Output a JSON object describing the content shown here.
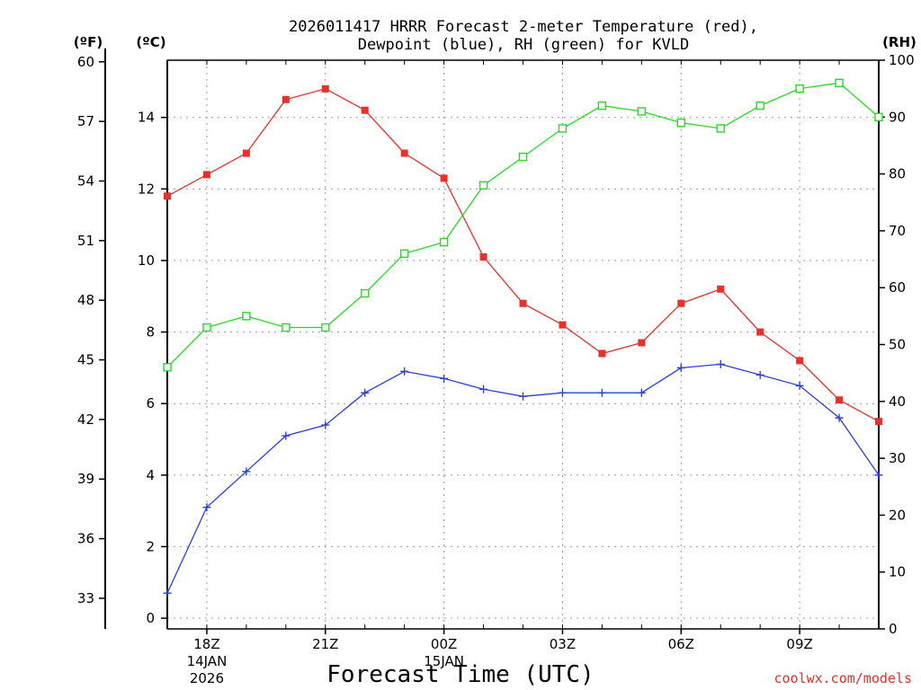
{
  "chart_data": {
    "type": "line",
    "title_line1": "2026011417 HRRR Forecast 2-meter Temperature (red),",
    "title_line2": "Dewpoint (blue), RH (green) for KVLD",
    "xlabel": "Forecast Time (UTC)",
    "credit": "coolwx.com/models",
    "left_outer_unit": "(ºF)",
    "left_inner_unit": "(ºC)",
    "right_unit": "(RH)",
    "x_range": [
      17,
      35
    ],
    "x_hours": [
      17,
      18,
      19,
      20,
      21,
      22,
      23,
      24,
      25,
      26,
      27,
      28,
      29,
      30,
      31,
      32,
      33,
      34,
      35
    ],
    "x_ticks": [
      {
        "hour": 18,
        "lines": [
          "18Z",
          "14JAN",
          "2026"
        ]
      },
      {
        "hour": 21,
        "lines": [
          "21Z"
        ]
      },
      {
        "hour": 24,
        "lines": [
          "00Z",
          "15JAN"
        ]
      },
      {
        "hour": 27,
        "lines": [
          "03Z"
        ]
      },
      {
        "hour": 30,
        "lines": [
          "06Z"
        ]
      },
      {
        "hour": 33,
        "lines": [
          "09Z"
        ]
      }
    ],
    "celsius_range": [
      -0.3,
      15.6
    ],
    "celsius_ticks": [
      "0",
      "2",
      "4",
      "6",
      "8",
      "10",
      "12",
      "14"
    ],
    "fahrenheit_ticks": [
      "33",
      "36",
      "39",
      "42",
      "45",
      "48",
      "51",
      "54",
      "57",
      "60"
    ],
    "rh_range": [
      0,
      100
    ],
    "rh_ticks": [
      "0",
      "10",
      "20",
      "30",
      "40",
      "50",
      "60",
      "70",
      "80",
      "90",
      "100"
    ],
    "series": [
      {
        "name": "Temperature",
        "color": "#e8302c",
        "marker": "filled-square",
        "axis": "celsius",
        "values": [
          11.8,
          12.4,
          13.0,
          14.5,
          14.8,
          14.2,
          13.0,
          12.3,
          10.1,
          8.8,
          8.2,
          7.4,
          7.7,
          8.8,
          9.2,
          8.0,
          7.2,
          6.1,
          5.5
        ]
      },
      {
        "name": "Dewpoint",
        "color": "#2a3fe0",
        "marker": "plus",
        "axis": "celsius",
        "values": [
          0.7,
          3.1,
          4.1,
          5.1,
          5.4,
          6.3,
          6.9,
          6.7,
          6.4,
          6.2,
          6.3,
          6.3,
          6.3,
          7.0,
          7.1,
          6.8,
          6.5,
          5.6,
          4.0
        ]
      },
      {
        "name": "RH",
        "color": "#22dd22",
        "marker": "open-square",
        "axis": "rh",
        "values": [
          46,
          53,
          55,
          53,
          53,
          59,
          66,
          68,
          78,
          83,
          88,
          92,
          91,
          89,
          88,
          92,
          95,
          96,
          90
        ]
      }
    ]
  }
}
